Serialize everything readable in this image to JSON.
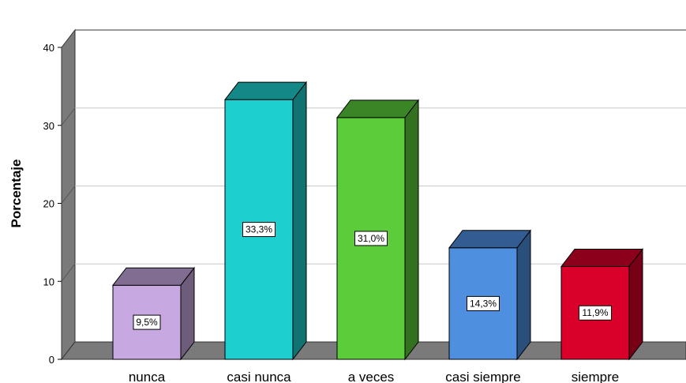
{
  "chart_data": {
    "type": "bar",
    "three_d": true,
    "categories": [
      "nunca",
      "casi nunca",
      "a veces",
      "casi siempre",
      "siempre"
    ],
    "values": [
      9.5,
      33.3,
      31.0,
      14.3,
      11.9
    ],
    "value_labels": [
      "9,5%",
      "33,3%",
      "31,0%",
      "14,3%",
      "11,9%"
    ],
    "colors": [
      "#c8a8e0",
      "#1ecfcf",
      "#5ccc3a",
      "#4f8fe0",
      "#d9002a"
    ],
    "ylabel": "Porcentaje",
    "ylim": [
      0,
      40
    ],
    "yticks": [
      0,
      10,
      20,
      30,
      40
    ],
    "ytick_labels": [
      "0",
      "10",
      "20",
      "30",
      "40"
    ],
    "grid": true
  }
}
